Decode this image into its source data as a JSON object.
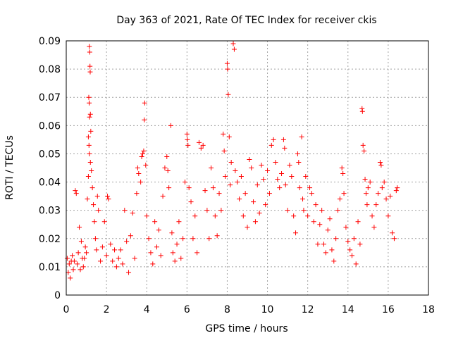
{
  "chart_data": {
    "type": "scatter",
    "title": "Day 363 of 2021, Rate Of TEC Index for receiver ckis",
    "xlabel": "GPS time / hours",
    "ylabel": "ROTI / TECUs",
    "xlim": [
      0,
      18
    ],
    "ylim": [
      0,
      0.09
    ],
    "xticks": [
      "0",
      "2",
      "4",
      "6",
      "8",
      "10",
      "12",
      "14",
      "16",
      "18"
    ],
    "yticks": [
      "0",
      "0.01",
      "0.02",
      "0.03",
      "0.04",
      "0.05",
      "0.06",
      "0.07",
      "0.08",
      "0.09"
    ],
    "grid": true,
    "marker": "+",
    "color": "#ff0000",
    "series": [
      {
        "points": [
          [
            0.05,
            0.013
          ],
          [
            0.1,
            0.008
          ],
          [
            0.15,
            0.011
          ],
          [
            0.2,
            0.006
          ],
          [
            0.25,
            0.012
          ],
          [
            0.3,
            0.014
          ],
          [
            0.35,
            0.009
          ],
          [
            0.4,
            0.012
          ],
          [
            0.45,
            0.037
          ],
          [
            0.5,
            0.036
          ],
          [
            0.55,
            0.011
          ],
          [
            0.6,
            0.015
          ],
          [
            0.65,
            0.024
          ],
          [
            0.7,
            0.009
          ],
          [
            0.75,
            0.019
          ],
          [
            0.8,
            0.013
          ],
          [
            0.85,
            0.01
          ],
          [
            0.9,
            0.013
          ],
          [
            0.95,
            0.017
          ],
          [
            1.0,
            0.015
          ],
          [
            1.05,
            0.034
          ],
          [
            1.1,
            0.042
          ],
          [
            1.15,
            0.088
          ],
          [
            1.17,
            0.086
          ],
          [
            1.18,
            0.081
          ],
          [
            1.19,
            0.079
          ],
          [
            1.12,
            0.07
          ],
          [
            1.14,
            0.068
          ],
          [
            1.16,
            0.063
          ],
          [
            1.2,
            0.064
          ],
          [
            1.22,
            0.058
          ],
          [
            1.1,
            0.056
          ],
          [
            1.13,
            0.053
          ],
          [
            1.15,
            0.05
          ],
          [
            1.2,
            0.047
          ],
          [
            1.25,
            0.044
          ],
          [
            1.3,
            0.038
          ],
          [
            1.35,
            0.032
          ],
          [
            1.4,
            0.026
          ],
          [
            1.45,
            0.02
          ],
          [
            1.5,
            0.016
          ],
          [
            1.55,
            0.035
          ],
          [
            1.6,
            0.03
          ],
          [
            1.7,
            0.012
          ],
          [
            1.8,
            0.017
          ],
          [
            1.9,
            0.026
          ],
          [
            2.0,
            0.014
          ],
          [
            2.05,
            0.035
          ],
          [
            2.1,
            0.034
          ],
          [
            2.2,
            0.018
          ],
          [
            2.3,
            0.012
          ],
          [
            2.4,
            0.016
          ],
          [
            2.5,
            0.01
          ],
          [
            2.6,
            0.013
          ],
          [
            2.7,
            0.016
          ],
          [
            2.8,
            0.011
          ],
          [
            2.9,
            0.03
          ],
          [
            3.0,
            0.019
          ],
          [
            3.1,
            0.008
          ],
          [
            3.2,
            0.021
          ],
          [
            3.3,
            0.029
          ],
          [
            3.4,
            0.013
          ],
          [
            3.5,
            0.036
          ],
          [
            3.55,
            0.045
          ],
          [
            3.6,
            0.043
          ],
          [
            3.7,
            0.04
          ],
          [
            3.75,
            0.049
          ],
          [
            3.8,
            0.05
          ],
          [
            3.85,
            0.051
          ],
          [
            3.9,
            0.068
          ],
          [
            3.88,
            0.062
          ],
          [
            3.95,
            0.046
          ],
          [
            4.0,
            0.028
          ],
          [
            4.1,
            0.02
          ],
          [
            4.2,
            0.015
          ],
          [
            4.3,
            0.011
          ],
          [
            4.4,
            0.026
          ],
          [
            4.5,
            0.017
          ],
          [
            4.6,
            0.023
          ],
          [
            4.7,
            0.014
          ],
          [
            4.8,
            0.035
          ],
          [
            4.9,
            0.045
          ],
          [
            5.0,
            0.049
          ],
          [
            5.05,
            0.044
          ],
          [
            5.1,
            0.038
          ],
          [
            5.2,
            0.06
          ],
          [
            5.25,
            0.022
          ],
          [
            5.3,
            0.015
          ],
          [
            5.4,
            0.012
          ],
          [
            5.5,
            0.018
          ],
          [
            5.6,
            0.026
          ],
          [
            5.7,
            0.013
          ],
          [
            5.8,
            0.02
          ],
          [
            5.9,
            0.04
          ],
          [
            6.0,
            0.057
          ],
          [
            6.02,
            0.055
          ],
          [
            6.05,
            0.053
          ],
          [
            6.1,
            0.038
          ],
          [
            6.2,
            0.033
          ],
          [
            6.3,
            0.02
          ],
          [
            6.4,
            0.028
          ],
          [
            6.5,
            0.015
          ],
          [
            6.6,
            0.054
          ],
          [
            6.7,
            0.052
          ],
          [
            6.8,
            0.053
          ],
          [
            6.9,
            0.037
          ],
          [
            7.0,
            0.03
          ],
          [
            7.1,
            0.02
          ],
          [
            7.2,
            0.045
          ],
          [
            7.3,
            0.038
          ],
          [
            7.4,
            0.028
          ],
          [
            7.5,
            0.021
          ],
          [
            7.6,
            0.036
          ],
          [
            7.7,
            0.03
          ],
          [
            7.8,
            0.057
          ],
          [
            7.85,
            0.051
          ],
          [
            7.9,
            0.042
          ],
          [
            8.0,
            0.082
          ],
          [
            8.02,
            0.08
          ],
          [
            8.05,
            0.071
          ],
          [
            8.1,
            0.056
          ],
          [
            8.15,
            0.039
          ],
          [
            8.2,
            0.047
          ],
          [
            8.3,
            0.089
          ],
          [
            8.35,
            0.087
          ],
          [
            8.4,
            0.044
          ],
          [
            8.5,
            0.04
          ],
          [
            8.6,
            0.034
          ],
          [
            8.7,
            0.042
          ],
          [
            8.8,
            0.028
          ],
          [
            8.9,
            0.036
          ],
          [
            9.0,
            0.024
          ],
          [
            9.1,
            0.048
          ],
          [
            9.2,
            0.045
          ],
          [
            9.3,
            0.033
          ],
          [
            9.4,
            0.026
          ],
          [
            9.5,
            0.039
          ],
          [
            9.6,
            0.029
          ],
          [
            9.7,
            0.046
          ],
          [
            9.8,
            0.041
          ],
          [
            9.9,
            0.032
          ],
          [
            10.0,
            0.044
          ],
          [
            10.1,
            0.036
          ],
          [
            10.2,
            0.053
          ],
          [
            10.3,
            0.055
          ],
          [
            10.4,
            0.047
          ],
          [
            10.5,
            0.041
          ],
          [
            10.6,
            0.038
          ],
          [
            10.7,
            0.043
          ],
          [
            10.8,
            0.055
          ],
          [
            10.85,
            0.052
          ],
          [
            10.9,
            0.039
          ],
          [
            11.0,
            0.03
          ],
          [
            11.1,
            0.046
          ],
          [
            11.2,
            0.042
          ],
          [
            11.3,
            0.028
          ],
          [
            11.4,
            0.022
          ],
          [
            11.5,
            0.05
          ],
          [
            11.55,
            0.047
          ],
          [
            11.6,
            0.038
          ],
          [
            11.7,
            0.056
          ],
          [
            11.75,
            0.034
          ],
          [
            11.8,
            0.03
          ],
          [
            11.9,
            0.042
          ],
          [
            12.0,
            0.028
          ],
          [
            12.1,
            0.038
          ],
          [
            12.2,
            0.036
          ],
          [
            12.3,
            0.026
          ],
          [
            12.4,
            0.032
          ],
          [
            12.5,
            0.018
          ],
          [
            12.6,
            0.025
          ],
          [
            12.7,
            0.03
          ],
          [
            12.8,
            0.018
          ],
          [
            12.9,
            0.015
          ],
          [
            13.0,
            0.023
          ],
          [
            13.1,
            0.027
          ],
          [
            13.2,
            0.016
          ],
          [
            13.3,
            0.012
          ],
          [
            13.4,
            0.02
          ],
          [
            13.5,
            0.03
          ],
          [
            13.6,
            0.034
          ],
          [
            13.7,
            0.045
          ],
          [
            13.75,
            0.043
          ],
          [
            13.8,
            0.036
          ],
          [
            13.9,
            0.024
          ],
          [
            14.0,
            0.019
          ],
          [
            14.1,
            0.016
          ],
          [
            14.2,
            0.014
          ],
          [
            14.3,
            0.02
          ],
          [
            14.4,
            0.011
          ],
          [
            14.5,
            0.026
          ],
          [
            14.6,
            0.018
          ],
          [
            14.7,
            0.066
          ],
          [
            14.72,
            0.065
          ],
          [
            14.75,
            0.053
          ],
          [
            14.8,
            0.051
          ],
          [
            14.85,
            0.041
          ],
          [
            14.9,
            0.036
          ],
          [
            14.95,
            0.032
          ],
          [
            15.0,
            0.038
          ],
          [
            15.1,
            0.04
          ],
          [
            15.2,
            0.028
          ],
          [
            15.3,
            0.024
          ],
          [
            15.4,
            0.032
          ],
          [
            15.5,
            0.036
          ],
          [
            15.6,
            0.047
          ],
          [
            15.65,
            0.046
          ],
          [
            15.7,
            0.038
          ],
          [
            15.8,
            0.04
          ],
          [
            15.9,
            0.034
          ],
          [
            16.0,
            0.028
          ],
          [
            16.1,
            0.035
          ],
          [
            16.2,
            0.022
          ],
          [
            16.3,
            0.02
          ],
          [
            16.4,
            0.037
          ],
          [
            16.45,
            0.038
          ]
        ]
      }
    ]
  }
}
